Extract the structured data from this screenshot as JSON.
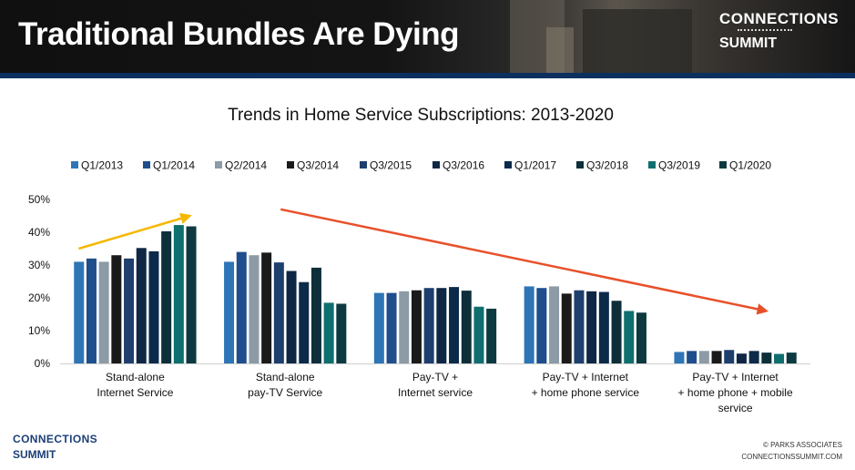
{
  "slide": {
    "title": "Traditional Bundles Are Dying",
    "logo_line1": "CONNECTIONS",
    "logo_line2": "SUMMIT",
    "footer_logo_line1": "CONNECTIONS",
    "footer_logo_line2": "SUMMIT",
    "copyright": "© PARKS ASSOCIATES",
    "website": "CONNECTIONSSUMMIT.COM"
  },
  "chart_data": {
    "type": "bar",
    "title": "Trends in Home Service Subscriptions: 2013-2020",
    "categories": [
      [
        "Stand-alone",
        "Internet Service"
      ],
      [
        "Stand-alone",
        "pay-TV Service"
      ],
      [
        "Pay-TV +",
        "Internet service"
      ],
      [
        "Pay-TV + Internet",
        "+ home phone service"
      ],
      [
        "Pay-TV + Internet",
        "+ home phone + mobile",
        "service"
      ]
    ],
    "ylim": [
      0,
      50
    ],
    "yticks": [
      "0%",
      "10%",
      "20%",
      "30%",
      "40%",
      "50%"
    ],
    "legend_position": "top",
    "grid": false,
    "series": [
      {
        "name": "Q1/2013",
        "color": "#2e75b6",
        "values": [
          31,
          31,
          21.5,
          23.5,
          3.5
        ]
      },
      {
        "name": "Q1/2014",
        "color": "#1f4e8c",
        "values": [
          32,
          34,
          21.5,
          23,
          3.8
        ]
      },
      {
        "name": "Q2/2014",
        "color": "#8c9ba5",
        "values": [
          31,
          33,
          22,
          23.5,
          3.8
        ]
      },
      {
        "name": "Q3/2014",
        "color": "#1a1a1a",
        "values": [
          33,
          33.8,
          22.3,
          21.3,
          3.8
        ]
      },
      {
        "name": "Q3/2015",
        "color": "#1e3f6e",
        "values": [
          32,
          30.8,
          23,
          22.3,
          4.1
        ]
      },
      {
        "name": "Q3/2016",
        "color": "#0f2744",
        "values": [
          35.2,
          28.2,
          23,
          22,
          3
        ]
      },
      {
        "name": "Q1/2017",
        "color": "#0c2a4a",
        "values": [
          34.2,
          24.8,
          23.3,
          21.8,
          3.8
        ]
      },
      {
        "name": "Q3/2018",
        "color": "#0d2f3a",
        "values": [
          40.3,
          29.2,
          22.2,
          19.1,
          3.3
        ]
      },
      {
        "name": "Q3/2019",
        "color": "#0f6e6e",
        "values": [
          42.2,
          18.5,
          17.3,
          16,
          2.9
        ]
      },
      {
        "name": "Q1/2020",
        "color": "#0c3a40",
        "values": [
          41.8,
          18.2,
          16.7,
          15.5,
          3.3
        ]
      }
    ],
    "annotations": [
      {
        "type": "arrow",
        "color": "#f5b800",
        "from": {
          "category": 0,
          "value": 35
        },
        "to": {
          "category": 0,
          "value": 45
        }
      },
      {
        "type": "arrow",
        "color": "#e8502a",
        "from": {
          "category": 1,
          "value": 47
        },
        "to": {
          "category": 4,
          "value": 16
        }
      }
    ]
  }
}
